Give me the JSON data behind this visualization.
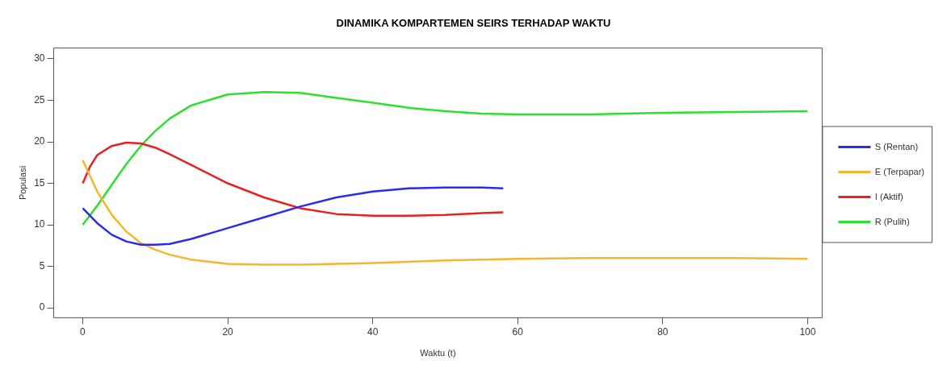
{
  "chart_data": {
    "type": "line",
    "title": "DINAMIKA KOMPARTEMEN SEIRS TERHADAP WAKTU",
    "xlabel": "Waktu (t)",
    "ylabel": "Populasi",
    "xlim": [
      -4,
      102
    ],
    "xticks": [
      0,
      20,
      40,
      60,
      80,
      100
    ],
    "ylim": [
      -1.2,
      31.3
    ],
    "yticks": [
      0,
      5,
      10,
      15,
      20,
      25,
      30
    ],
    "grid": false,
    "legend": "right",
    "marker": "none",
    "line_style": "solid",
    "series": [
      {
        "name": "S (Rentan)",
        "color": "#2b2bf0",
        "x": [
          0,
          2,
          4,
          6,
          8,
          10,
          12,
          15,
          20,
          25,
          30,
          35,
          40,
          45,
          50,
          55,
          58
        ],
        "values": [
          12,
          10.2,
          8.8,
          8,
          7.6,
          7.6,
          7.7,
          8.3,
          9.6,
          10.9,
          12.2,
          13.3,
          14,
          14.4,
          14.5,
          14.5,
          14.4
        ]
      },
      {
        "name": "E (Terpapar)",
        "color": "#f5b52e",
        "x": [
          0,
          2,
          4,
          6,
          8,
          10,
          12,
          15,
          20,
          25,
          30,
          40,
          50,
          60,
          70,
          80,
          90,
          100
        ],
        "values": [
          17.8,
          14,
          11.2,
          9.2,
          7.8,
          7,
          6.4,
          5.8,
          5.3,
          5.2,
          5.2,
          5.4,
          5.7,
          5.9,
          6,
          6,
          6,
          5.9
        ]
      },
      {
        "name": "I (Aktif)",
        "color": "#e82020",
        "x": [
          0,
          1,
          2,
          4,
          6,
          8,
          10,
          12,
          15,
          20,
          25,
          30,
          35,
          40,
          45,
          50,
          55,
          58
        ],
        "values": [
          15,
          17,
          18.4,
          19.5,
          19.9,
          19.8,
          19.3,
          18.5,
          17.2,
          15,
          13.3,
          12,
          11.3,
          11.1,
          11.1,
          11.2,
          11.4,
          11.5
        ]
      },
      {
        "name": "R (Pulih)",
        "color": "#2ee02e",
        "x": [
          0,
          2,
          4,
          6,
          8,
          10,
          12,
          15,
          20,
          25,
          30,
          35,
          40,
          45,
          50,
          55,
          60,
          70,
          80,
          90,
          100
        ],
        "values": [
          10,
          12.3,
          14.8,
          17.3,
          19.5,
          21.3,
          22.8,
          24.4,
          25.7,
          26,
          25.9,
          25.3,
          24.7,
          24.1,
          23.7,
          23.4,
          23.3,
          23.3,
          23.5,
          23.6,
          23.7
        ]
      }
    ]
  }
}
